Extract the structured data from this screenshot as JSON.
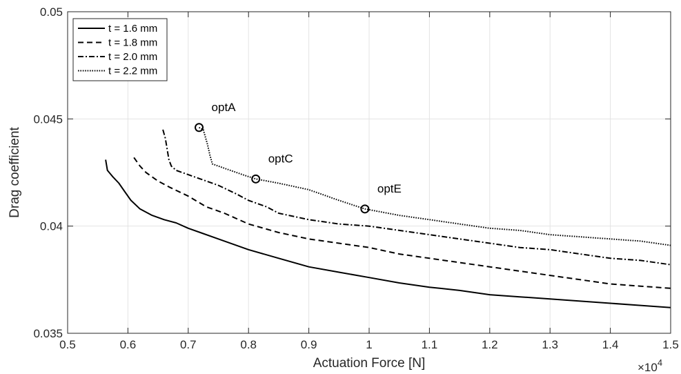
{
  "chart_data": {
    "type": "line",
    "title": "",
    "xlabel": "Actuation Force [N]",
    "ylabel": "Drag coefficient",
    "x_multiplier_label": "×10",
    "x_multiplier_exponent": "4",
    "xlim": [
      0.5,
      1.5
    ],
    "ylim": [
      0.035,
      0.05
    ],
    "xticks": [
      0.5,
      0.6,
      0.7,
      0.8,
      0.9,
      1.0,
      1.1,
      1.2,
      1.3,
      1.4,
      1.5
    ],
    "xtick_labels": [
      "0.5",
      "0.6",
      "0.7",
      "0.8",
      "0.9",
      "1",
      "1.1",
      "1.2",
      "1.3",
      "1.4",
      "1.5"
    ],
    "yticks": [
      0.035,
      0.04,
      0.045,
      0.05
    ],
    "ytick_labels": [
      "0.035",
      "0.04",
      "0.045",
      "0.05"
    ],
    "grid": true,
    "legend_position": "top-left",
    "series": [
      {
        "name": "t = 1.6 mm",
        "style": "solid",
        "x": [
          0.563,
          0.566,
          0.575,
          0.585,
          0.595,
          0.605,
          0.62,
          0.64,
          0.66,
          0.68,
          0.7,
          0.72,
          0.75,
          0.8,
          0.85,
          0.9,
          0.95,
          1.0,
          1.05,
          1.1,
          1.15,
          1.2,
          1.25,
          1.3,
          1.35,
          1.4,
          1.45,
          1.5
        ],
        "y": [
          0.0431,
          0.0426,
          0.0423,
          0.042,
          0.0416,
          0.0412,
          0.0408,
          0.0405,
          0.0403,
          0.04015,
          0.0399,
          0.0397,
          0.0394,
          0.0389,
          0.0385,
          0.0381,
          0.03785,
          0.0376,
          0.03735,
          0.03715,
          0.037,
          0.0368,
          0.0367,
          0.0366,
          0.0365,
          0.0364,
          0.0363,
          0.0362
        ]
      },
      {
        "name": "t = 1.8 mm",
        "style": "dashed",
        "x": [
          0.61,
          0.62,
          0.63,
          0.65,
          0.67,
          0.7,
          0.73,
          0.76,
          0.8,
          0.85,
          0.9,
          0.95,
          1.0,
          1.05,
          1.1,
          1.15,
          1.2,
          1.25,
          1.3,
          1.35,
          1.4,
          1.45,
          1.5
        ],
        "y": [
          0.0432,
          0.0428,
          0.0425,
          0.0421,
          0.0418,
          0.0414,
          0.0409,
          0.0406,
          0.0401,
          0.0397,
          0.0394,
          0.0392,
          0.039,
          0.0387,
          0.0385,
          0.0383,
          0.0381,
          0.0379,
          0.0377,
          0.0375,
          0.0373,
          0.0372,
          0.0371
        ]
      },
      {
        "name": "t = 2.0 mm",
        "style": "dash-dot",
        "x": [
          0.658,
          0.662,
          0.665,
          0.668,
          0.672,
          0.68,
          0.7,
          0.72,
          0.75,
          0.78,
          0.8,
          0.83,
          0.85,
          0.9,
          0.95,
          1.0,
          1.05,
          1.1,
          1.15,
          1.2,
          1.25,
          1.3,
          1.35,
          1.4,
          1.45,
          1.5
        ],
        "y": [
          0.0445,
          0.0441,
          0.0436,
          0.0431,
          0.0428,
          0.0426,
          0.0424,
          0.0422,
          0.0419,
          0.0415,
          0.0412,
          0.0409,
          0.0406,
          0.0403,
          0.0401,
          0.04,
          0.0398,
          0.0396,
          0.0394,
          0.0392,
          0.039,
          0.0389,
          0.0387,
          0.0385,
          0.0384,
          0.0382
        ]
      },
      {
        "name": "t = 2.2 mm",
        "style": "dotted",
        "x": [
          0.718,
          0.725,
          0.732,
          0.736,
          0.74,
          0.76,
          0.79,
          0.812,
          0.85,
          0.9,
          0.95,
          0.993,
          1.05,
          1.1,
          1.15,
          1.2,
          1.25,
          1.3,
          1.35,
          1.4,
          1.45,
          1.5
        ],
        "y": [
          0.0446,
          0.0445,
          0.0438,
          0.0433,
          0.0429,
          0.0427,
          0.0424,
          0.0422,
          0.042,
          0.0417,
          0.0412,
          0.0408,
          0.0405,
          0.0403,
          0.0401,
          0.0399,
          0.0398,
          0.0396,
          0.0395,
          0.0394,
          0.0393,
          0.0391
        ]
      }
    ],
    "annotations": [
      {
        "label": "optA",
        "x": 0.718,
        "y": 0.0446
      },
      {
        "label": "optC",
        "x": 0.812,
        "y": 0.0422
      },
      {
        "label": "optE",
        "x": 0.993,
        "y": 0.0408
      }
    ]
  }
}
